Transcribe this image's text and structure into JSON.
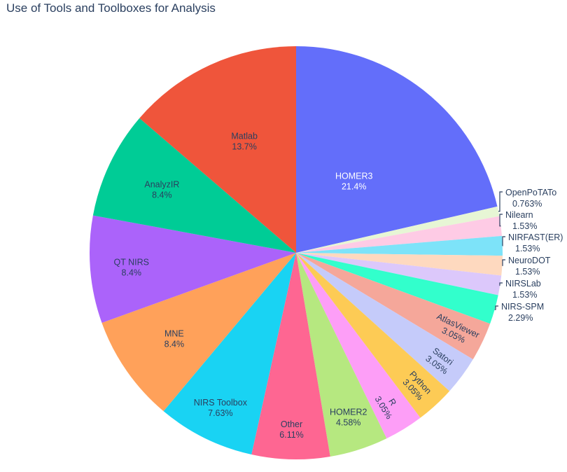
{
  "chart_data": {
    "type": "pie",
    "title": "Use of Tools and Toolboxes for Analysis",
    "slices": [
      {
        "label": "HOMER3",
        "percent": "21.4%",
        "value": 21.4,
        "color": "#636efa",
        "text_color": "#ffffff"
      },
      {
        "label": "OpenPoTATo",
        "percent": "0.763%",
        "value": 0.763,
        "color": "#e7f6d5",
        "text_color": "#2a3f5f"
      },
      {
        "label": "Nilearn",
        "percent": "1.53%",
        "value": 1.53,
        "color": "#fecbe5",
        "text_color": "#2a3f5f"
      },
      {
        "label": "NIRFAST(ER)",
        "percent": "1.53%",
        "value": 1.53,
        "color": "#7de3f9",
        "text_color": "#2a3f5f"
      },
      {
        "label": "NeuroDOT",
        "percent": "1.53%",
        "value": 1.53,
        "color": "#fed9bf",
        "text_color": "#2a3f5f"
      },
      {
        "label": "NIRSLab",
        "percent": "1.53%",
        "value": 1.53,
        "color": "#dcc8fb",
        "text_color": "#2a3f5f"
      },
      {
        "label": "NIRS-SPM",
        "percent": "2.29%",
        "value": 2.29,
        "color": "#32ffcc",
        "text_color": "#2a3f5f"
      },
      {
        "label": "AtlasViewer",
        "percent": "3.05%",
        "value": 3.05,
        "color": "#f5a79a",
        "text_color": "#2a3f5f"
      },
      {
        "label": "Satori",
        "percent": "3.05%",
        "value": 3.05,
        "color": "#c5cbfa",
        "text_color": "#2a3f5f"
      },
      {
        "label": "Python",
        "percent": "3.05%",
        "value": 3.05,
        "color": "#fdcb55",
        "text_color": "#2a3f5f"
      },
      {
        "label": "R",
        "percent": "3.05%",
        "value": 3.05,
        "color": "#fd9ef7",
        "text_color": "#2a3f5f"
      },
      {
        "label": "HOMER2",
        "percent": "4.58%",
        "value": 4.58,
        "color": "#b6e880",
        "text_color": "#2a3f5f"
      },
      {
        "label": "Other",
        "percent": "6.11%",
        "value": 6.11,
        "color": "#fe6692",
        "text_color": "#2a3f5f"
      },
      {
        "label": "NIRS Toolbox",
        "percent": "7.63%",
        "value": 7.63,
        "color": "#19d3f3",
        "text_color": "#2a3f5f"
      },
      {
        "label": "MNE",
        "percent": "8.4%",
        "value": 8.4,
        "color": "#ffa15a",
        "text_color": "#2a3f5f"
      },
      {
        "label": "QT NIRS",
        "percent": "8.4%",
        "value": 8.4,
        "color": "#ab63fa",
        "text_color": "#2a3f5f"
      },
      {
        "label": "AnalyzIR",
        "percent": "8.4%",
        "value": 8.4,
        "color": "#00cc96",
        "text_color": "#2a3f5f"
      },
      {
        "label": "Matlab",
        "percent": "13.7%",
        "value": 13.7,
        "color": "#ef553b",
        "text_color": "#2a3f5f"
      }
    ],
    "direction": "clockwise",
    "legend": "none"
  }
}
